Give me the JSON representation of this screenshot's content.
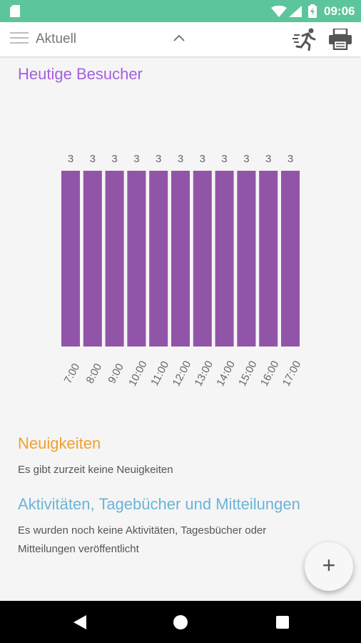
{
  "status_bar": {
    "time": "09:06"
  },
  "toolbar": {
    "title": "Aktuell"
  },
  "visitors": {
    "title": "Heutige Besucher"
  },
  "chart_data": {
    "type": "bar",
    "categories": [
      "7:00",
      "8:00",
      "9:00",
      "10:00",
      "11:00",
      "12:00",
      "13:00",
      "14:00",
      "15:00",
      "16:00",
      "17:00"
    ],
    "values": [
      3,
      3,
      3,
      3,
      3,
      3,
      3,
      3,
      3,
      3,
      3
    ],
    "ylim": [
      0,
      3
    ],
    "bar_color": "#9155a8",
    "grid": false
  },
  "news": {
    "title": "Neuigkeiten",
    "text": "Es gibt zurzeit keine Neuigkeiten"
  },
  "activities": {
    "title": "Aktivitäten, Tagebücher und Mitteilungen",
    "text": "Es wurden noch keine Aktivitäten, Tagesbücher oder Mitteilungen veröffentlicht"
  },
  "fab": {
    "label": "+"
  },
  "colors": {
    "status_bar": "#5cc59b",
    "visitors_title": "#a55fe0",
    "news_title": "#f0a030",
    "activities_title": "#6ab4d8"
  }
}
